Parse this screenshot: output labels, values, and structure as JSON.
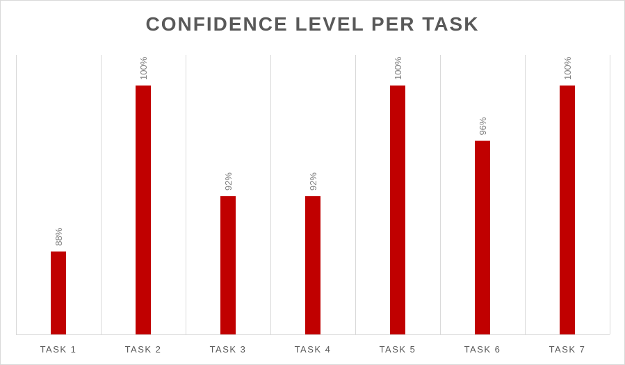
{
  "chart_data": {
    "type": "bar",
    "title": "CONFIDENCE LEVEL PER TASK",
    "categories": [
      "TASK 1",
      "TASK 2",
      "TASK 3",
      "TASK 4",
      "TASK 5",
      "TASK 6",
      "TASK 7"
    ],
    "values": [
      88,
      100,
      92,
      92,
      100,
      96,
      100
    ],
    "data_labels": [
      "88%",
      "100%",
      "92%",
      "92%",
      "100%",
      "96%",
      "100%"
    ],
    "ylim": [
      82,
      100
    ],
    "grid": "vertical category separators",
    "legend": "none",
    "bar_color": "#c00000"
  }
}
